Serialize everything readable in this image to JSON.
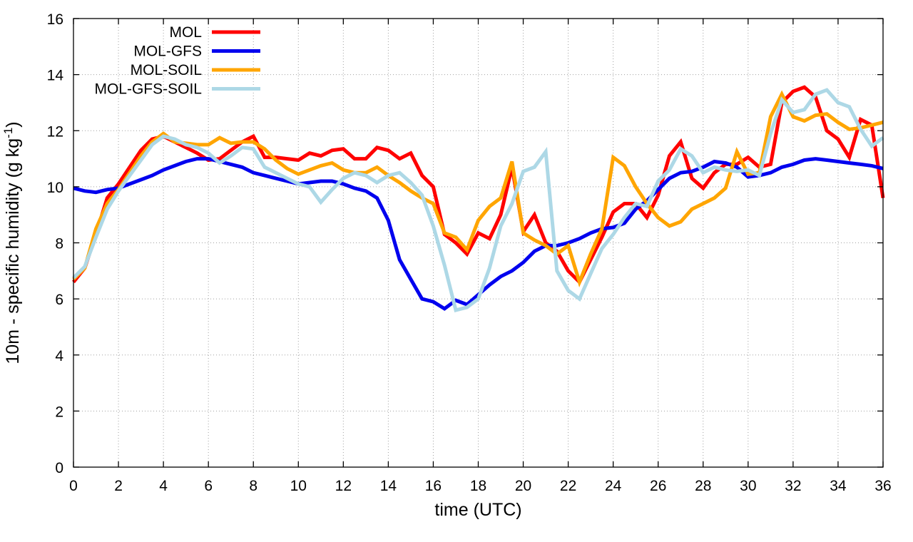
{
  "chart_data": {
    "type": "line",
    "title": "",
    "xlabel": "time (UTC)",
    "ylabel_main": "10m - specific humidity (g kg",
    "ylabel_sup": "-1",
    "ylabel_close": ")",
    "xlim": [
      0,
      36
    ],
    "ylim": [
      0,
      16
    ],
    "grid": true,
    "legend_position": "top-left",
    "x_ticks": [
      0,
      2,
      4,
      6,
      8,
      10,
      12,
      14,
      16,
      18,
      20,
      22,
      24,
      26,
      28,
      30,
      32,
      34,
      36
    ],
    "y_ticks": [
      0,
      2,
      4,
      6,
      8,
      10,
      12,
      14,
      16
    ],
    "series": [
      {
        "name": "MOL",
        "color": "#ff0000",
        "x": [
          0,
          0.5,
          1,
          1.5,
          2,
          2.5,
          3,
          3.5,
          4,
          4.5,
          5,
          5.5,
          6,
          6.5,
          7,
          7.5,
          8,
          8.5,
          9,
          9.5,
          10,
          10.5,
          11,
          11.5,
          12,
          12.5,
          13,
          13.5,
          14,
          14.5,
          15,
          15.5,
          16,
          16.5,
          17,
          17.5,
          18,
          18.5,
          19,
          19.5,
          20,
          20.5,
          21,
          21.5,
          22,
          22.5,
          23,
          23.5,
          24,
          24.5,
          25,
          25.5,
          26,
          26.5,
          27,
          27.5,
          28,
          28.5,
          29,
          29.5,
          30,
          30.5,
          31,
          31.5,
          32,
          32.5,
          33,
          33.5,
          34,
          34.5,
          35,
          35.5,
          36
        ],
        "values": [
          6.6,
          7.1,
          8.3,
          9.6,
          10.1,
          10.7,
          11.3,
          11.7,
          11.8,
          11.6,
          11.4,
          11.2,
          10.95,
          11.0,
          11.3,
          11.6,
          11.8,
          11.05,
          11.05,
          11.0,
          10.95,
          11.2,
          11.1,
          11.3,
          11.35,
          11.0,
          11.0,
          11.4,
          11.3,
          11.0,
          11.2,
          10.4,
          10.0,
          8.3,
          8.0,
          7.6,
          8.35,
          8.15,
          9.0,
          10.7,
          8.4,
          9.0,
          8.0,
          7.7,
          7.0,
          6.6,
          7.4,
          8.2,
          9.1,
          9.4,
          9.4,
          8.9,
          9.7,
          11.1,
          11.6,
          10.3,
          9.95,
          10.5,
          10.8,
          10.8,
          11.05,
          10.7,
          10.8,
          13.0,
          13.4,
          13.55,
          13.2,
          12.0,
          11.7,
          11.05,
          12.4,
          12.2,
          9.6
        ]
      },
      {
        "name": "MOL-GFS",
        "color": "#0000ee",
        "x": [
          0,
          0.5,
          1,
          1.5,
          2,
          2.5,
          3,
          3.5,
          4,
          4.5,
          5,
          5.5,
          6,
          6.5,
          7,
          7.5,
          8,
          8.5,
          9,
          9.5,
          10,
          10.5,
          11,
          11.5,
          12,
          12.5,
          13,
          13.5,
          14,
          14.5,
          15,
          15.5,
          16,
          16.5,
          17,
          17.5,
          18,
          18.5,
          19,
          19.5,
          20,
          20.5,
          21,
          21.5,
          22,
          22.5,
          23,
          23.5,
          24,
          24.5,
          25,
          25.5,
          26,
          26.5,
          27,
          27.5,
          28,
          28.5,
          29,
          29.5,
          30,
          30.5,
          31,
          31.5,
          32,
          32.5,
          33,
          33.5,
          34,
          34.5,
          35,
          35.5,
          36
        ],
        "values": [
          9.95,
          9.85,
          9.8,
          9.9,
          9.95,
          10.1,
          10.25,
          10.4,
          10.6,
          10.75,
          10.9,
          11.0,
          11.0,
          10.9,
          10.8,
          10.7,
          10.5,
          10.4,
          10.3,
          10.2,
          10.1,
          10.15,
          10.2,
          10.2,
          10.1,
          9.95,
          9.85,
          9.6,
          8.8,
          7.4,
          6.7,
          6.0,
          5.9,
          5.65,
          5.95,
          5.8,
          6.15,
          6.5,
          6.8,
          7.0,
          7.3,
          7.7,
          7.9,
          7.9,
          8.0,
          8.15,
          8.35,
          8.5,
          8.55,
          8.7,
          9.2,
          9.5,
          9.9,
          10.3,
          10.5,
          10.55,
          10.7,
          10.9,
          10.85,
          10.7,
          10.35,
          10.4,
          10.5,
          10.7,
          10.8,
          10.95,
          11.0,
          10.95,
          10.9,
          10.85,
          10.8,
          10.75,
          10.65
        ]
      },
      {
        "name": "MOL-SOIL",
        "color": "#ffa500",
        "x": [
          0,
          0.5,
          1,
          1.5,
          2,
          2.5,
          3,
          3.5,
          4,
          4.5,
          5,
          5.5,
          6,
          6.5,
          7,
          7.5,
          8,
          8.5,
          9,
          9.5,
          10,
          10.5,
          11,
          11.5,
          12,
          12.5,
          13,
          13.5,
          14,
          14.5,
          15,
          15.5,
          16,
          16.5,
          17,
          17.5,
          18,
          18.5,
          19,
          19.5,
          20,
          20.5,
          21,
          21.5,
          22,
          22.5,
          23,
          23.5,
          24,
          24.5,
          25,
          25.5,
          26,
          26.5,
          27,
          27.5,
          28,
          28.5,
          29,
          29.5,
          30,
          30.5,
          31,
          31.5,
          32,
          32.5,
          33,
          33.5,
          34,
          34.5,
          35,
          35.5,
          36
        ],
        "values": [
          6.7,
          7.1,
          8.5,
          9.4,
          9.9,
          10.5,
          11.1,
          11.6,
          11.9,
          11.6,
          11.55,
          11.5,
          11.5,
          11.75,
          11.55,
          11.6,
          11.6,
          11.35,
          10.95,
          10.65,
          10.45,
          10.6,
          10.75,
          10.85,
          10.6,
          10.5,
          10.5,
          10.7,
          10.4,
          10.15,
          9.85,
          9.6,
          9.4,
          8.35,
          8.2,
          7.75,
          8.8,
          9.3,
          9.6,
          10.9,
          8.35,
          8.1,
          7.9,
          7.6,
          7.9,
          6.6,
          7.6,
          8.5,
          11.05,
          10.75,
          10.0,
          9.4,
          8.9,
          8.6,
          8.75,
          9.2,
          9.4,
          9.6,
          9.95,
          11.25,
          10.45,
          10.5,
          12.5,
          13.3,
          12.5,
          12.35,
          12.55,
          12.6,
          12.3,
          12.05,
          12.1,
          12.2,
          12.3
        ]
      },
      {
        "name": "MOL-GFS-SOIL",
        "color": "#add8e6",
        "x": [
          0,
          0.5,
          1,
          1.5,
          2,
          2.5,
          3,
          3.5,
          4,
          4.5,
          5,
          5.5,
          6,
          6.5,
          7,
          7.5,
          8,
          8.5,
          9,
          9.5,
          10,
          10.5,
          11,
          11.5,
          12,
          12.5,
          13,
          13.5,
          14,
          14.5,
          15,
          15.5,
          16,
          16.5,
          17,
          17.5,
          18,
          18.5,
          19,
          19.5,
          20,
          20.5,
          21,
          21.5,
          22,
          22.5,
          23,
          23.5,
          24,
          24.5,
          25,
          25.5,
          26,
          26.5,
          27,
          27.5,
          28,
          28.5,
          29,
          29.5,
          30,
          30.5,
          31,
          31.5,
          32,
          32.5,
          33,
          33.5,
          34,
          34.5,
          35,
          35.5,
          36
        ],
        "values": [
          6.75,
          7.15,
          8.2,
          9.2,
          9.85,
          10.4,
          10.95,
          11.5,
          11.8,
          11.7,
          11.5,
          11.4,
          11.2,
          10.85,
          11.1,
          11.4,
          11.35,
          10.7,
          10.5,
          10.3,
          10.1,
          10.0,
          9.45,
          9.9,
          10.3,
          10.5,
          10.4,
          10.15,
          10.4,
          10.5,
          10.15,
          9.7,
          8.6,
          7.2,
          5.6,
          5.7,
          6.0,
          7.1,
          8.6,
          9.4,
          10.55,
          10.7,
          11.25,
          7.0,
          6.3,
          6.0,
          6.9,
          7.8,
          8.3,
          8.9,
          9.4,
          9.3,
          10.2,
          10.6,
          11.35,
          11.1,
          10.5,
          10.7,
          10.6,
          10.55,
          10.6,
          10.4,
          11.9,
          13.1,
          12.65,
          12.75,
          13.3,
          13.45,
          13.0,
          12.85,
          12.05,
          11.45,
          11.75
        ]
      }
    ]
  }
}
